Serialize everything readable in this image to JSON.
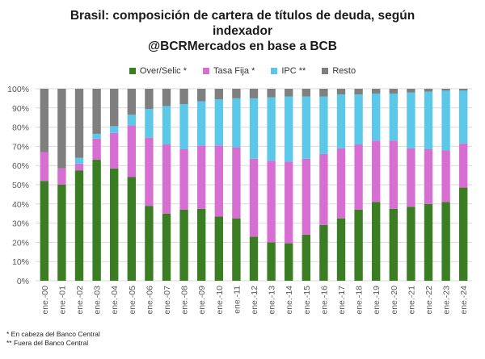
{
  "title_lines": [
    "Brasil: composición de cartera de títulos de deuda, según",
    "indexador",
    "@BCRMercados en base a BCB"
  ],
  "footnotes": [
    "* En cabeza del Banco Central",
    "** Fuera del Banco Central"
  ],
  "chart_data": {
    "type": "bar",
    "stacked": true,
    "percent": true,
    "ylim": [
      0,
      100
    ],
    "yticks": [
      0,
      10,
      20,
      30,
      40,
      50,
      60,
      70,
      80,
      90,
      100
    ],
    "ytick_labels": [
      "0%",
      "10%",
      "20%",
      "30%",
      "40%",
      "50%",
      "60%",
      "70%",
      "80%",
      "90%",
      "100%"
    ],
    "grid": true,
    "legend_position": "top",
    "categories": [
      "ene.-00",
      "ene.-01",
      "ene.-02",
      "ene.-03",
      "ene.-04",
      "ene.-05",
      "ene.-06",
      "ene.-07",
      "ene.-08",
      "ene.-09",
      "ene.-10",
      "ene.-11",
      "ene.-12",
      "ene.-13",
      "ene.-14",
      "ene.-15",
      "ene.-16",
      "ene.-17",
      "ene.-18",
      "ene.-19",
      "ene.-20",
      "ene.-21",
      "ene.-22",
      "ene.-23",
      "ene.-24"
    ],
    "series": [
      {
        "name": "Over/Selic *",
        "color": "#3a7d22",
        "values": [
          52,
          50,
          57.5,
          63,
          58.5,
          54,
          39,
          35,
          37,
          37.5,
          33.5,
          32.5,
          23,
          20,
          19.5,
          24,
          29,
          32.5,
          37,
          41,
          37.5,
          38.5,
          40,
          41,
          48.5
        ]
      },
      {
        "name": "Tasa Fija *",
        "color": "#d76fd3",
        "values": [
          15,
          8.5,
          3.5,
          11,
          18.5,
          27,
          35.5,
          36,
          31.5,
          33,
          37,
          37,
          40.5,
          42.5,
          42.5,
          39.5,
          37,
          36.5,
          34,
          32,
          35.5,
          30.5,
          28.5,
          27,
          23
        ]
      },
      {
        "name": "IPC **",
        "color": "#5bc8ea",
        "values": [
          0,
          0,
          3,
          2.5,
          3.5,
          5.5,
          15,
          20,
          23.5,
          23,
          24,
          25.5,
          31.5,
          33,
          34,
          32.5,
          30,
          28,
          26,
          24.5,
          24.5,
          29,
          30,
          31,
          27.5
        ]
      },
      {
        "name": "Resto",
        "color": "#7f7f7f",
        "values": [
          33,
          41.5,
          36,
          23.5,
          19.5,
          13.5,
          10.5,
          9,
          8,
          6.5,
          5.5,
          5,
          5,
          4.5,
          4,
          4,
          4,
          3,
          3,
          2.5,
          2.5,
          2,
          1.5,
          1,
          1
        ]
      }
    ]
  }
}
